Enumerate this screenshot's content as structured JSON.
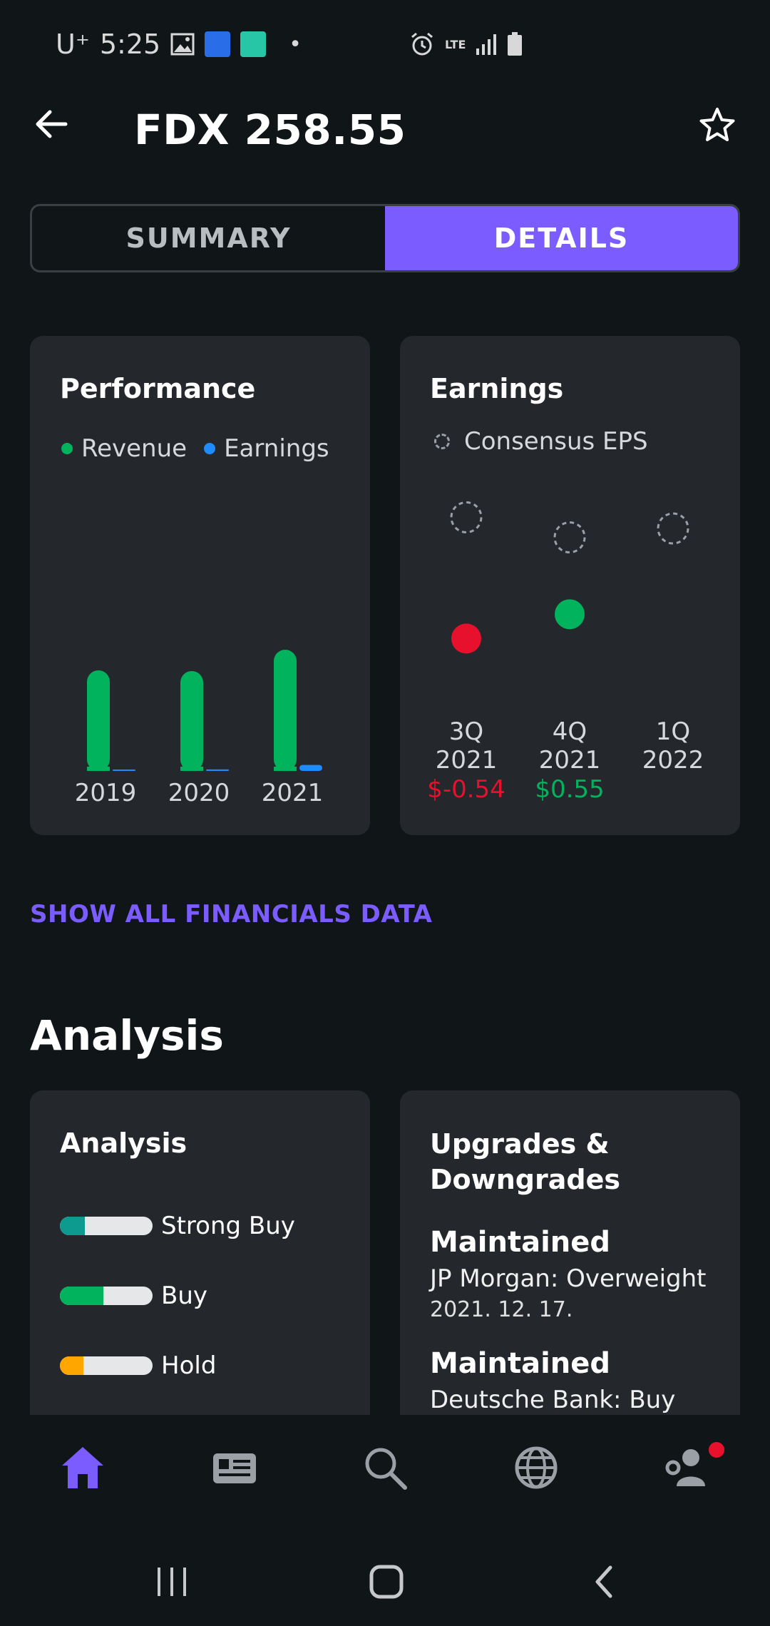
{
  "status_bar": {
    "carrier": "U⁺",
    "time": "5:25",
    "network": "LTE",
    "dot": "•"
  },
  "header": {
    "title": "FDX 258.55"
  },
  "tabs": [
    {
      "label": "SUMMARY",
      "selected": false
    },
    {
      "label": "DETAILS",
      "selected": true
    }
  ],
  "performance": {
    "title": "Performance",
    "legend": [
      {
        "label": "Revenue",
        "color": "#00b35c"
      },
      {
        "label": "Earnings",
        "color": "#1e8bff"
      }
    ],
    "chart_data": {
      "type": "bar",
      "categories": [
        "2019",
        "2020",
        "2021"
      ],
      "series": [
        {
          "name": "Revenue",
          "values": [
            69.7,
            69.2,
            84.0
          ],
          "color": "#00b35c"
        },
        {
          "name": "Earnings",
          "values": [
            0.5,
            1.3,
            5.2
          ],
          "color": "#1e8bff"
        }
      ],
      "ylim": [
        0,
        100
      ]
    }
  },
  "earnings": {
    "title": "Earnings",
    "legend_label": "Consensus EPS",
    "chart_data": {
      "type": "scatter",
      "categories": [
        "3Q 2021",
        "4Q 2021",
        "1Q 2022"
      ],
      "consensus": [
        4.9,
        4.0,
        4.4
      ],
      "actual": [
        -0.54,
        0.55,
        null
      ],
      "ylim": [
        -2,
        6
      ]
    },
    "columns": [
      {
        "q": "3Q",
        "year": "2021",
        "value": "$-0.54",
        "color": "#e8112d"
      },
      {
        "q": "4Q",
        "year": "2021",
        "value": "$0.55",
        "color": "#00b35c"
      },
      {
        "q": "1Q",
        "year": "2022",
        "value": "",
        "color": "#ffffff"
      }
    ]
  },
  "financials_link": "SHOW ALL FINANCIALS DATA",
  "analysis_section": {
    "heading": "Analysis",
    "card_title": "Analysis",
    "ratings": [
      {
        "label": "Strong Buy",
        "fraction": 0.27,
        "color": "#0c9b8e"
      },
      {
        "label": "Buy",
        "fraction": 0.47,
        "color": "#00b35c"
      },
      {
        "label": "Hold",
        "fraction": 0.25,
        "color": "#ffa700"
      }
    ]
  },
  "upgrades": {
    "title_line1": "Upgrades &",
    "title_line2": "Downgrades",
    "items": [
      {
        "action": "Maintained",
        "detail": "JP Morgan: Overweight",
        "date": "2021. 12. 17."
      },
      {
        "action": "Maintained",
        "detail": "Deutsche Bank: Buy",
        "date": ""
      }
    ]
  },
  "bottom_nav": [
    {
      "icon": "home-icon",
      "active": true
    },
    {
      "icon": "news-icon",
      "active": false
    },
    {
      "icon": "search-icon",
      "active": false
    },
    {
      "icon": "globe-icon",
      "active": false
    },
    {
      "icon": "profile-settings-icon",
      "active": false
    }
  ],
  "colors": {
    "accent": "#7b5cff",
    "positive": "#00b35c",
    "negative": "#e8112d",
    "earnings_blue": "#1e8bff"
  }
}
